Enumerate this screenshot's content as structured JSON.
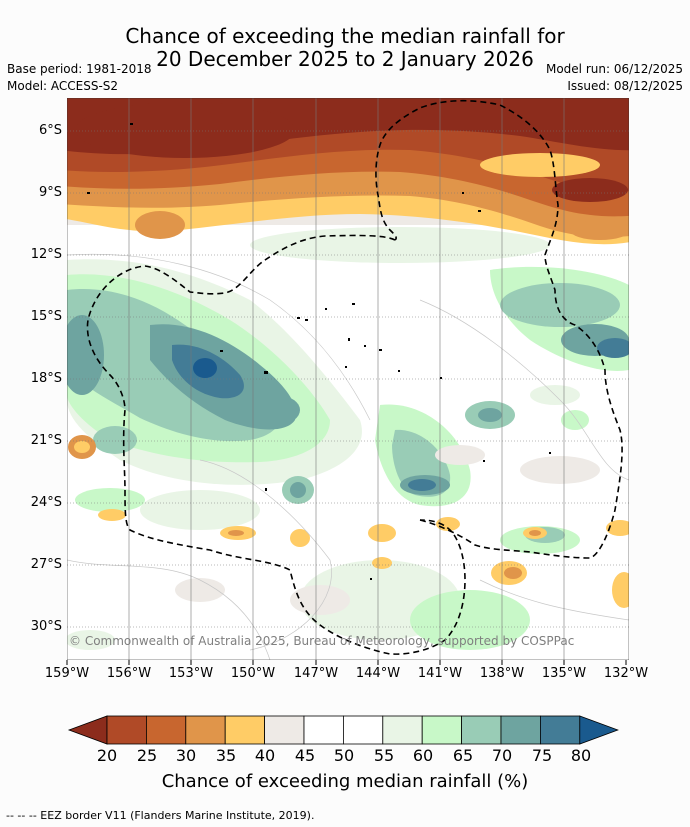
{
  "title": {
    "line1": "Chance of exceeding the median rainfall for",
    "line2": "20 December 2025 to 2 January 2026"
  },
  "meta": {
    "base_period": "Base period: 1981-2018",
    "model": "Model: ACCESS-S2",
    "model_run": "Model run: 06/12/2025",
    "issued": "Issued: 08/12/2025"
  },
  "map": {
    "lat_labels": [
      "6°S",
      "9°S",
      "12°S",
      "15°S",
      "18°S",
      "21°S",
      "24°S",
      "27°S",
      "30°S"
    ],
    "lon_labels": [
      "159°W",
      "156°W",
      "153°W",
      "150°W",
      "147°W",
      "144°W",
      "141°W",
      "138°W",
      "135°W",
      "132°W"
    ],
    "copyright": "© Commonwealth of Australia 2025, Bureau of Meteorology, supported by COSPPac"
  },
  "colorbar": {
    "ticks": [
      "20",
      "25",
      "30",
      "35",
      "40",
      "45",
      "50",
      "55",
      "60",
      "65",
      "70",
      "75",
      "80"
    ],
    "colors": [
      "#8c2c1c",
      "#b04a27",
      "#c8662f",
      "#e0954a",
      "#ffcc66",
      "#eeeae6",
      "#ffffff",
      "#ffffff",
      "#e9f5e6",
      "#c8f8c8",
      "#99ccb6",
      "#6ea4a0",
      "#437c96",
      "#1a5a8e"
    ],
    "label": "Chance of exceeding median rainfall (%)"
  },
  "footer": "--  --  -- EEZ border V11 (Flanders Marine Institute, 2019)."
}
